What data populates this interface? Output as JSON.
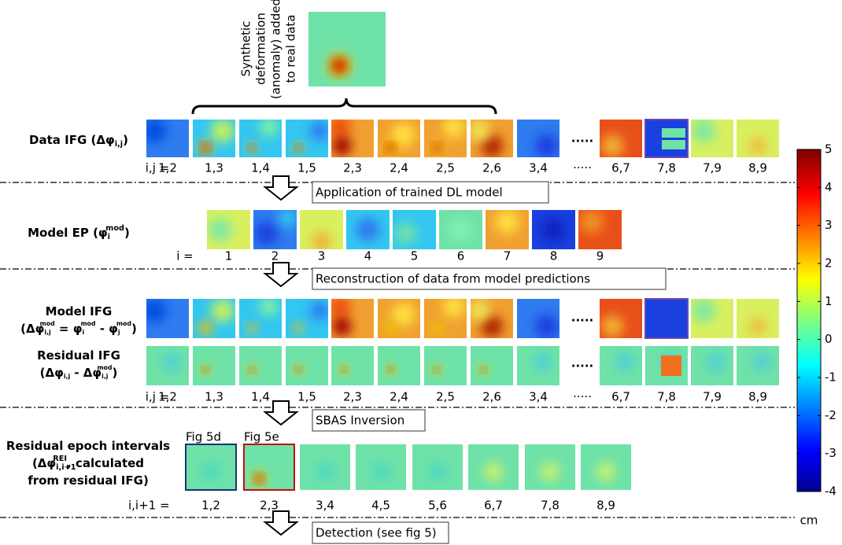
{
  "annotation": [
    "Synthetic",
    "deformation",
    "(anomaly) added",
    "to real data"
  ],
  "data_ifg": {
    "label": [
      {
        "t": "Data IFG (Δφ"
      },
      {
        "sub": "i,j"
      },
      {
        "t": ")"
      }
    ]
  },
  "index_1": {
    "label": "i,j =",
    "items": [
      "1,2",
      "1,3",
      "1,4",
      "1,5",
      "2,3",
      "2,4",
      "2,5",
      "2,6",
      "3,4",
      "·····",
      "6,7",
      "7,8",
      "7,9",
      "8,9"
    ]
  },
  "step_1": "Application of trained DL model",
  "model_ep": {
    "label": [
      {
        "t": "Model EP (φ"
      },
      {
        "sub": "i"
      },
      {
        "sup": "mod"
      },
      {
        "t": ")"
      }
    ]
  },
  "index_2": {
    "label": "i =",
    "items": [
      "1",
      "2",
      "3",
      "4",
      "5",
      "6",
      "7",
      "8",
      "9"
    ]
  },
  "step_2": "Reconstruction of data from model predictions",
  "model_ifg": {
    "label": [
      {
        "t": "Model IFG"
      }
    ],
    "formula": [
      {
        "t": "(Δφ"
      },
      {
        "sub": "i,j"
      },
      {
        "sup": "mod"
      },
      {
        "t": " = φ"
      },
      {
        "sub": "i"
      },
      {
        "sup": "mod"
      },
      {
        "t": " - φ"
      },
      {
        "sub": "j"
      },
      {
        "sup": "mod"
      },
      {
        "t": ")"
      }
    ]
  },
  "residual_ifg": {
    "label": [
      {
        "t": "Residual IFG"
      }
    ],
    "formula": [
      {
        "t": "(Δφ"
      },
      {
        "sub": "i,j"
      },
      {
        "t": " - Δφ"
      },
      {
        "sub": "i,j"
      },
      {
        "sup": "mod"
      },
      {
        "t": ")"
      }
    ]
  },
  "index_3": {
    "label": "i,j =",
    "items": [
      "1,2",
      "1,3",
      "1,4",
      "1,5",
      "2,3",
      "2,4",
      "2,5",
      "2,6",
      "3,4",
      "·····",
      "6,7",
      "7,8",
      "7,9",
      "8,9"
    ]
  },
  "step_3": "SBAS Inversion",
  "rei": {
    "label": [
      [
        {
          "t": "Residual epoch intervals"
        }
      ],
      [
        {
          "t": "(Δφ"
        },
        {
          "sub": "i,i+1"
        },
        {
          "sup": "REI"
        },
        {
          "t": ", calculated"
        }
      ],
      [
        {
          "t": "from residual IFG)"
        }
      ]
    ],
    "fig_labels": [
      "Fig 5d",
      "Fig 5e"
    ]
  },
  "index_4": {
    "label": "i,i+1 =",
    "items": [
      "1,2",
      "2,3",
      "3,4",
      "4,5",
      "5,6",
      "6,7",
      "7,8",
      "8,9"
    ]
  },
  "step_4": "Detection (see fig 5)",
  "colorbar": {
    "lim": [
      -4,
      5
    ],
    "ticks": [
      5,
      4,
      3,
      2,
      1,
      0,
      -1,
      -2,
      -3,
      -4
    ],
    "unit": "cm"
  }
}
